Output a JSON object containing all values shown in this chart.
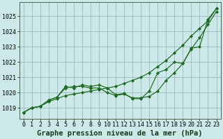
{
  "background_color": "#cce8e8",
  "grid_color": "#99bbbb",
  "line_color": "#1a6b1a",
  "marker_color": "#1a6b1a",
  "title": "Graphe pression niveau de la mer (hPa)",
  "xlim": [
    -0.5,
    23.5
  ],
  "ylim": [
    1018.3,
    1025.9
  ],
  "yticks": [
    1019,
    1020,
    1021,
    1022,
    1023,
    1024,
    1025
  ],
  "xticks": [
    0,
    1,
    2,
    3,
    4,
    5,
    6,
    7,
    8,
    9,
    10,
    11,
    12,
    13,
    14,
    15,
    16,
    17,
    18,
    19,
    20,
    21,
    22,
    23
  ],
  "xtick_labels": [
    "0",
    "1",
    "2",
    "3",
    "4",
    "5",
    "6",
    "7",
    "8",
    "9",
    "10",
    "11",
    "12",
    "13",
    "14",
    "15",
    "16",
    "17",
    "18",
    "19",
    "20",
    "21",
    "22",
    "23"
  ],
  "series": [
    [
      1018.7,
      1019.0,
      1019.1,
      1019.4,
      1019.6,
      1019.8,
      1019.9,
      1020.0,
      1020.1,
      1020.2,
      1020.3,
      1020.4,
      1020.6,
      1020.8,
      1021.0,
      1021.3,
      1021.7,
      1022.1,
      1022.6,
      1023.1,
      1023.7,
      1024.2,
      1024.7,
      1025.5
    ],
    [
      1018.7,
      1019.0,
      1019.1,
      1019.5,
      1019.7,
      1020.3,
      1020.4,
      1020.4,
      1020.3,
      1020.3,
      1020.0,
      1019.8,
      1019.9,
      1019.65,
      1019.65,
      1019.75,
      1020.1,
      1020.8,
      1021.3,
      1021.9,
      1022.85,
      1023.6,
      1024.45,
      1025.3
    ],
    [
      1018.7,
      1019.0,
      1019.1,
      1019.5,
      1019.7,
      1020.4,
      1020.3,
      1020.5,
      1020.4,
      1020.5,
      1020.3,
      1019.85,
      1019.95,
      1019.6,
      1019.6,
      1020.1,
      1021.3,
      1021.5,
      1022.0,
      1021.9,
      1022.9,
      1023.0,
      1024.8,
      1025.5
    ]
  ],
  "title_fontsize": 7.5,
  "tick_fontsize": 6.0
}
